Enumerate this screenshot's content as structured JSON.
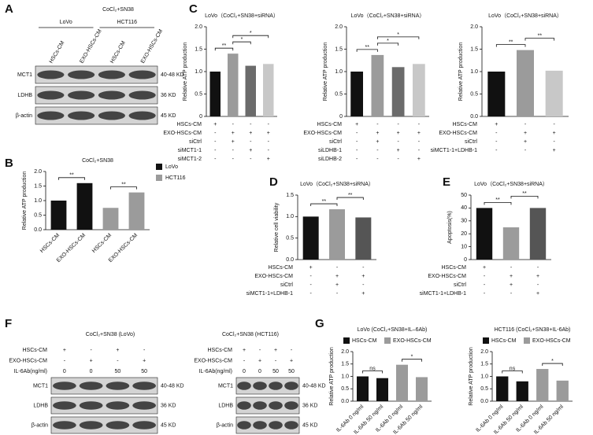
{
  "panel_labels": [
    "A",
    "B",
    "C",
    "D",
    "E",
    "F",
    "G"
  ],
  "blots": [
    {
      "header": "CoCl₂+SN38",
      "groups": [
        "LoVo",
        "HCT116"
      ],
      "lane_labels": [
        "HSCs-CM",
        "EXO-HSCs-CM",
        "HSCs-CM",
        "EXO-HSCs-CM"
      ],
      "rows": [
        {
          "name": "MCT1",
          "size": "40-48 KD"
        },
        {
          "name": "LDHB",
          "size": "36 KD"
        },
        {
          "name": "β-actin",
          "size": "45 KD"
        }
      ]
    },
    {
      "header": "CoCl₂+SN38 (LoVo)",
      "conditions": [
        {
          "label": "HSCs-CM",
          "signs": [
            "+",
            "-",
            "+",
            "-"
          ]
        },
        {
          "label": "EXO-HSCs-CM",
          "signs": [
            "-",
            "+",
            "-",
            "+"
          ]
        },
        {
          "label": "IL-6Ab(ng/ml)",
          "signs": [
            "0",
            "0",
            "50",
            "50"
          ]
        }
      ],
      "rows": [
        {
          "name": "MCT1",
          "size": "40-48 KD"
        },
        {
          "name": "LDHB",
          "size": "36 KD"
        },
        {
          "name": "β-actin",
          "size": "45 KD"
        }
      ]
    },
    {
      "header": "CoCl₂+SN38 (HCT116)",
      "conditions": [
        {
          "label": "HSCs-CM",
          "signs": [
            "+",
            "-",
            "+",
            "-"
          ]
        },
        {
          "label": "EXO-HSCs-CM",
          "signs": [
            "-",
            "+",
            "-",
            "+"
          ]
        },
        {
          "label": "IL-6Ab(ng/ml)",
          "signs": [
            "0",
            "0",
            "50",
            "50"
          ]
        }
      ],
      "rows": [
        {
          "name": "MCT1",
          "size": "40-48 KD"
        },
        {
          "name": "LDHB",
          "size": "36 KD"
        },
        {
          "name": "β-actin",
          "size": "45 KD"
        }
      ]
    }
  ],
  "chart_data": [
    {
      "type": "bar",
      "title": "LoVo（CoCl₂+SN38+siRNA）",
      "y_label": "Relative ATP production",
      "values": [
        1,
        1.4,
        1.13,
        1.17
      ],
      "colors": [
        "#111111",
        "#9b9b9b",
        "#6b6b6b",
        "#c8c8c8"
      ],
      "ylim": [
        0,
        2
      ],
      "yticks": [
        0,
        0.5,
        {
          "value": 1,
          "label": "1.0"
        },
        1.5,
        {
          "value": 2,
          "label": "2.0"
        }
      ],
      "brackets": [
        {
          "label": "**",
          "from": 0,
          "to": 1
        },
        {
          "label": "*",
          "from": 1,
          "to": 2
        },
        {
          "label": "*",
          "from": 1,
          "to": 3
        }
      ],
      "conditions": [
        {
          "label": "HSCs-CM",
          "signs": [
            "+",
            "-",
            "-",
            "-"
          ]
        },
        {
          "label": "EXO-HSCs-CM",
          "signs": [
            "-",
            "+",
            "+",
            "+"
          ]
        },
        {
          "label": "siCtrl",
          "signs": [
            "-",
            "+",
            "-",
            "-"
          ]
        },
        {
          "label": "siMCT1-1",
          "signs": [
            "-",
            "-",
            "+",
            "-"
          ]
        },
        {
          "label": "siMCT1-2",
          "signs": [
            "-",
            "-",
            "-",
            "+"
          ]
        }
      ]
    },
    {
      "type": "bar",
      "title": "LoVo（CoCl₂+SN38+siRNA）",
      "y_label": "Relative ATP production",
      "values": [
        1,
        1.37,
        1.1,
        1.17
      ],
      "colors": [
        "#111111",
        "#9b9b9b",
        "#6b6b6b",
        "#c8c8c8"
      ],
      "ylim": [
        0,
        2
      ],
      "yticks": [
        0,
        0.5,
        {
          "value": 1,
          "label": "1.0"
        },
        1.5,
        {
          "value": 2,
          "label": "2.0"
        }
      ],
      "brackets": [
        {
          "label": "**",
          "from": 0,
          "to": 1
        },
        {
          "label": "*",
          "from": 1,
          "to": 2
        },
        {
          "label": "*",
          "from": 1,
          "to": 3
        }
      ],
      "conditions": [
        {
          "label": "HSCs-CM",
          "signs": [
            "+",
            "-",
            "-",
            "-"
          ]
        },
        {
          "label": "EXO-HSCs-CM",
          "signs": [
            "-",
            "+",
            "+",
            "+"
          ]
        },
        {
          "label": "siCtrl",
          "signs": [
            "-",
            "+",
            "-",
            "-"
          ]
        },
        {
          "label": "siLDHB-1",
          "signs": [
            "-",
            "-",
            "+",
            "-"
          ]
        },
        {
          "label": "siLDHB-2",
          "signs": [
            "-",
            "-",
            "-",
            "+"
          ]
        }
      ]
    },
    {
      "type": "bar",
      "title": "LoVo（CoCl₂+SN38+siRNA）",
      "y_label": "Relative ATP production",
      "values": [
        1,
        1.48,
        1.02
      ],
      "colors": [
        "#111111",
        "#9b9b9b",
        "#c8c8c8"
      ],
      "ylim": [
        0,
        2
      ],
      "yticks": [
        {
          "value": 0,
          "label": "0.0"
        },
        0.5,
        {
          "value": 1,
          "label": "1.0"
        },
        1.5,
        {
          "value": 2,
          "label": "2.0"
        }
      ],
      "brackets": [
        {
          "label": "**",
          "from": 0,
          "to": 1
        },
        {
          "label": "**",
          "from": 1,
          "to": 2
        }
      ],
      "conditions": [
        {
          "label": "HSCs-CM",
          "signs": [
            "+",
            "-",
            "-"
          ]
        },
        {
          "label": "EXO-HSCs-CM",
          "signs": [
            "-",
            "+",
            "+"
          ]
        },
        {
          "label": "siCtrl",
          "signs": [
            "-",
            "+",
            "-"
          ]
        },
        {
          "label": "siMCT1-1+LDHB-1",
          "signs": [
            "-",
            "-",
            "+"
          ]
        }
      ]
    },
    {
      "type": "bar",
      "title": "CoCl₂+SN38",
      "y_label": "Relative ATP production",
      "categories": [
        "HSCs-CM",
        "EXO-HSCs-CM",
        "HSCs-CM",
        "EXO-HSCs-CM"
      ],
      "series": [
        {
          "name": "LoVo",
          "color": "#111111",
          "values": [
            1,
            1.6,
            null,
            null
          ]
        },
        {
          "name": "HCT116",
          "color": "#9b9b9b",
          "values": [
            null,
            null,
            0.75,
            1.28
          ]
        }
      ],
      "legend": "right",
      "ylim": [
        0,
        2
      ],
      "yticks": [
        {
          "value": 0,
          "label": "0.0"
        },
        0.5,
        {
          "value": 1,
          "label": "1.0"
        },
        1.5,
        {
          "value": 2,
          "label": "2.0"
        }
      ],
      "brackets": [
        {
          "label": "**",
          "from": 0,
          "to": 1
        },
        {
          "label": "**",
          "from": 2,
          "to": 3
        }
      ]
    },
    {
      "type": "bar",
      "title": "LoVo（CoCl₂+SN38+siRNA）",
      "y_label": "Relative cell viability",
      "values": [
        1,
        1.17,
        0.98
      ],
      "colors": [
        "#111111",
        "#9b9b9b",
        "#555555"
      ],
      "ylim": [
        0,
        1.5
      ],
      "yticks": [
        {
          "value": 0,
          "label": "0.0"
        },
        0.5,
        {
          "value": 1,
          "label": "1.0"
        },
        1.5
      ],
      "brackets": [
        {
          "label": "**",
          "from": 0,
          "to": 1
        },
        {
          "label": "**",
          "from": 1,
          "to": 2
        }
      ],
      "conditions": [
        {
          "label": "HSCs-CM",
          "signs": [
            "+",
            "-",
            "-"
          ]
        },
        {
          "label": "EXO-HSCs-CM",
          "signs": [
            "-",
            "+",
            "+"
          ]
        },
        {
          "label": "siCtrl",
          "signs": [
            "-",
            "+",
            "-"
          ]
        },
        {
          "label": "siMCT1-1+LDHB-1",
          "signs": [
            "-",
            "-",
            "+"
          ]
        }
      ]
    },
    {
      "type": "bar",
      "title": "LoVo（CoCl₂+SN38+siRNA）",
      "y_label": "Apoptosis(%)",
      "values": [
        40,
        25,
        40
      ],
      "colors": [
        "#111111",
        "#9b9b9b",
        "#555555"
      ],
      "ylim": [
        0,
        50
      ],
      "yticks": [
        0,
        10,
        20,
        30,
        40,
        50
      ],
      "brackets": [
        {
          "label": "**",
          "from": 0,
          "to": 1
        },
        {
          "label": "**",
          "from": 1,
          "to": 2
        }
      ],
      "conditions": [
        {
          "label": "HSCs-CM",
          "signs": [
            "+",
            "-",
            "-"
          ]
        },
        {
          "label": "EXO-HSCs-CM",
          "signs": [
            "-",
            "+",
            "+"
          ]
        },
        {
          "label": "siCtrl",
          "signs": [
            "-",
            "+",
            "-"
          ]
        },
        {
          "label": "siMCT1-1+LDHB-1",
          "signs": [
            "-",
            "-",
            "+"
          ]
        }
      ]
    },
    {
      "type": "bar",
      "title": "LoVo (CoCl₂+SN38+IL–6Ab)",
      "y_label": "Relative ATP production",
      "categories": [
        "IL-6Ab 0 ng/ml",
        "IL-6Ab 50 ng/ml",
        "IL-6Ab 0 ng/ml",
        "IL-6Ab 50 ng/ml"
      ],
      "series": [
        {
          "name": "HSCs-CM",
          "color": "#111111",
          "values": [
            1,
            0.93,
            null,
            null
          ]
        },
        {
          "name": "EXO-HSCs-CM",
          "color": "#9b9b9b",
          "values": [
            null,
            null,
            1.47,
            0.97
          ]
        }
      ],
      "legend": "top",
      "ylim": [
        0,
        2
      ],
      "yticks": [
        {
          "value": 0,
          "label": "0.0"
        },
        0.5,
        {
          "value": 1,
          "label": "1.0"
        },
        1.5,
        {
          "value": 2,
          "label": "2.0"
        }
      ],
      "brackets": [
        {
          "label": "ns",
          "from": 0,
          "to": 1
        },
        {
          "label": "*",
          "from": 2,
          "to": 3
        }
      ]
    },
    {
      "type": "bar",
      "title": "HCT116 (CoCl₂+SN38+IL-6Ab)",
      "y_label": "Relative ATP production",
      "categories": [
        "IL-6Ab 0 ng/ml",
        "IL-6Ab 50 ng/ml",
        "IL-6Ab 0 ng/ml",
        "IL-6Ab 50 ng/ml"
      ],
      "series": [
        {
          "name": "HSCs-CM",
          "color": "#111111",
          "values": [
            1,
            0.8,
            null,
            null
          ]
        },
        {
          "name": "EXO-HSCs-CM",
          "color": "#9b9b9b",
          "values": [
            null,
            null,
            1.3,
            0.83
          ]
        }
      ],
      "legend": "top",
      "ylim": [
        0,
        2
      ],
      "yticks": [
        {
          "value": 0,
          "label": "0.0"
        },
        0.5,
        {
          "value": 1,
          "label": "1.0"
        },
        1.5,
        {
          "value": 2,
          "label": "2.0"
        }
      ],
      "brackets": [
        {
          "label": "ns",
          "from": 0,
          "to": 1
        },
        {
          "label": "*",
          "from": 2,
          "to": 3
        }
      ]
    }
  ]
}
